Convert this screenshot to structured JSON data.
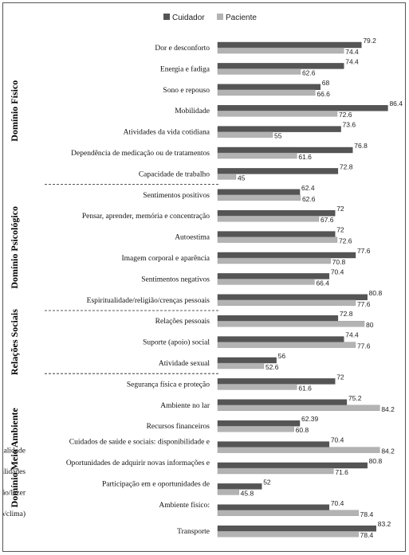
{
  "chart_data": {
    "type": "bar",
    "orientation": "horizontal",
    "legend_position": "top",
    "grid": false,
    "series": [
      {
        "name": "Cuidador",
        "color": "#555555"
      },
      {
        "name": "Paciente",
        "color": "#b3b3b3"
      }
    ],
    "groups": [
      {
        "label": "Domínio Físico",
        "items": [
          {
            "label": "Dor e desconforto",
            "values": [
              79.2,
              74.4
            ],
            "value_labels": [
              "79.2",
              "74.4"
            ]
          },
          {
            "label": "Energia e fadiga",
            "values": [
              74.4,
              62.6
            ],
            "value_labels": [
              "74.4",
              "62.6"
            ]
          },
          {
            "label": "Sono e repouso",
            "values": [
              68,
              66.6
            ],
            "value_labels": [
              "68",
              "66.6"
            ]
          },
          {
            "label": "Mobilidade",
            "values": [
              86.4,
              72.6
            ],
            "value_labels": [
              "86.4",
              "72.6"
            ]
          },
          {
            "label": "Atividades da vida cotidiana",
            "values": [
              73.6,
              55
            ],
            "value_labels": [
              "73.6",
              "55"
            ]
          },
          {
            "label": "Dependência de medicação ou de tratamentos",
            "values": [
              76.8,
              61.6
            ],
            "value_labels": [
              "76.8",
              "61.6"
            ]
          },
          {
            "label": "Capacidade de trabalho",
            "values": [
              72.8,
              45
            ],
            "value_labels": [
              "72.8",
              "45"
            ]
          }
        ]
      },
      {
        "label": "Domínio Psicológico",
        "items": [
          {
            "label": "Sentimentos positivos",
            "values": [
              62.4,
              62.6
            ],
            "value_labels": [
              "62.4",
              "62.6"
            ]
          },
          {
            "label": "Pensar, aprender, memória e concentração",
            "values": [
              72,
              67.6
            ],
            "value_labels": [
              "72",
              "67.6"
            ]
          },
          {
            "label": "Autoestima",
            "values": [
              72,
              72.6
            ],
            "value_labels": [
              "72",
              "72.6"
            ]
          },
          {
            "label": "Imagem corporal e aparência",
            "values": [
              77.6,
              70.8
            ],
            "value_labels": [
              "77.6",
              "70.8"
            ]
          },
          {
            "label": "Sentimentos negativos",
            "values": [
              70.4,
              66.4
            ],
            "value_labels": [
              "70.4",
              "66.4"
            ]
          },
          {
            "label": "Espiritualidade/religião/crenças pessoais",
            "values": [
              80.8,
              77.6
            ],
            "value_labels": [
              "80.8",
              "77.6"
            ]
          }
        ]
      },
      {
        "label": "Relações Sociais",
        "items": [
          {
            "label": "Relações pessoais",
            "values": [
              72.8,
              80
            ],
            "value_labels": [
              "72.8",
              "80"
            ]
          },
          {
            "label": "Suporte (apoio) social",
            "values": [
              74.4,
              77.6
            ],
            "value_labels": [
              "74.4",
              "77.6"
            ]
          },
          {
            "label": "Atividade sexual",
            "values": [
              56,
              52.6
            ],
            "value_labels": [
              "56",
              "52.6"
            ]
          }
        ]
      },
      {
        "label": "Domínio Meio Ambiente",
        "items": [
          {
            "label": "Segurança física e proteção",
            "values": [
              72,
              61.6
            ],
            "value_labels": [
              "72",
              "61.6"
            ]
          },
          {
            "label": "Ambiente no lar",
            "values": [
              75.2,
              84.2
            ],
            "value_labels": [
              "75.2",
              "84.2"
            ]
          },
          {
            "label": "Recursos financeiros",
            "values": [
              62.39,
              60.8
            ],
            "value_labels": [
              "62.39",
              "60.8"
            ]
          },
          {
            "label": "Cuidados de saúde e sociais: disponibilidade e qualidade",
            "values": [
              70.4,
              84.2
            ],
            "value_labels": [
              "70.4",
              "84.2"
            ]
          },
          {
            "label": "Oportunidades de adquirir novas informações e habilidades",
            "values": [
              80.8,
              71.6
            ],
            "value_labels": [
              "80.8",
              "71.6"
            ]
          },
          {
            "label": "Participação em e oportunidades de recreação/lazer",
            "values": [
              52,
              45.8
            ],
            "value_labels": [
              "52",
              "45.8"
            ]
          },
          {
            "label": "Ambiente físico: (poluição/ruído/trânsito/clima)",
            "values": [
              70.4,
              78.4
            ],
            "value_labels": [
              "70.4",
              "78.4"
            ]
          },
          {
            "label": "Transporte",
            "values": [
              83.2,
              78.4
            ],
            "value_labels": [
              "83.2",
              "78.4"
            ]
          }
        ]
      }
    ]
  }
}
